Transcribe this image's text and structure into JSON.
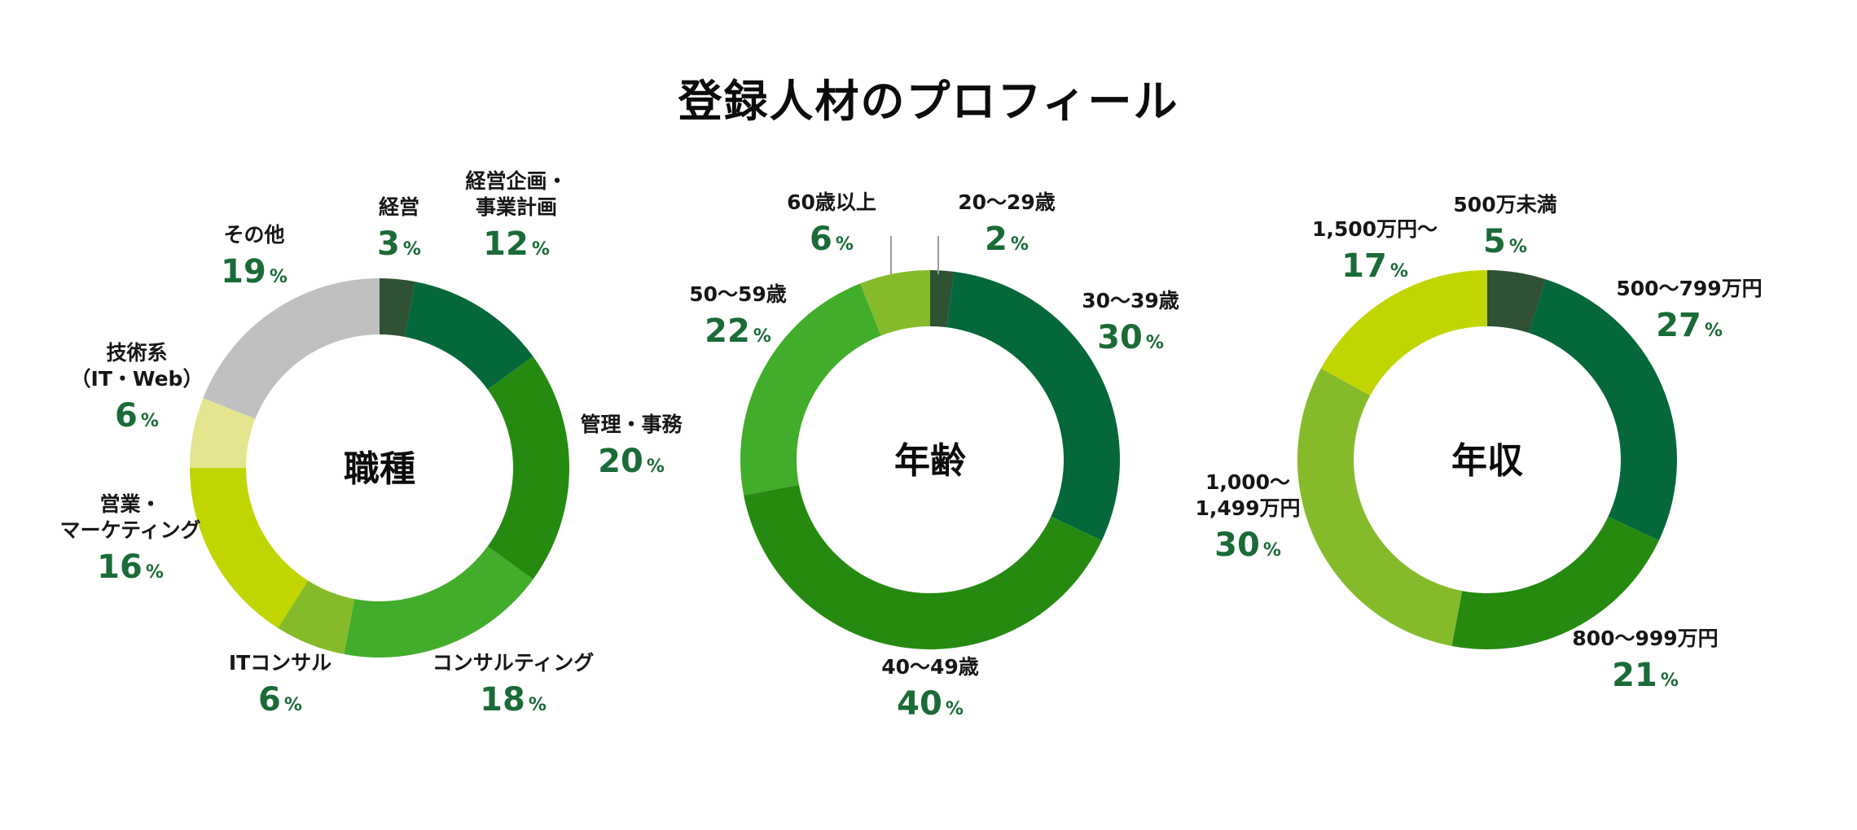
{
  "title": "登録人材のプロフィール",
  "percent_symbol": "%",
  "chart_data": [
    {
      "type": "pie",
      "center_label": "職種",
      "slices": [
        {
          "label": [
            "経営"
          ],
          "value": 3,
          "color": "#2f5134"
        },
        {
          "label": [
            "経営企画・",
            "事業計画"
          ],
          "value": 12,
          "color": "#05683a"
        },
        {
          "label": [
            "管理・事務"
          ],
          "value": 20,
          "color": "#268a11"
        },
        {
          "label": [
            "コンサルティング"
          ],
          "value": 18,
          "color": "#42ad2a"
        },
        {
          "label": [
            "ITコンサル"
          ],
          "value": 6,
          "color": "#85bb2a"
        },
        {
          "label": [
            "営業・",
            "マーケティング"
          ],
          "value": 16,
          "color": "#c1d600"
        },
        {
          "label": [
            "技術系",
            "（IT・Web）"
          ],
          "value": 6,
          "color": "#e5e590"
        },
        {
          "label": [
            "その他"
          ],
          "value": 19,
          "color": "#bfc0bf"
        }
      ]
    },
    {
      "type": "pie",
      "center_label": "年齢",
      "slices": [
        {
          "label": [
            "20～29歳"
          ],
          "value": 2,
          "color": "#2f5134"
        },
        {
          "label": [
            "30～39歳"
          ],
          "value": 30,
          "color": "#05683a"
        },
        {
          "label": [
            "40～49歳"
          ],
          "value": 40,
          "color": "#268a11"
        },
        {
          "label": [
            "50～59歳"
          ],
          "value": 22,
          "color": "#42ad2a"
        },
        {
          "label": [
            "60歳以上"
          ],
          "value": 6,
          "color": "#85bb2a"
        }
      ]
    },
    {
      "type": "pie",
      "center_label": "年収",
      "slices": [
        {
          "label": [
            "500万未満"
          ],
          "value": 5,
          "color": "#2f5134"
        },
        {
          "label": [
            "500～799万円"
          ],
          "value": 27,
          "color": "#05683a"
        },
        {
          "label": [
            "800～999万円"
          ],
          "value": 21,
          "color": "#268a11"
        },
        {
          "label": [
            "1,000～",
            "1,499万円"
          ],
          "value": 30,
          "color": "#85bb2a"
        },
        {
          "label": [
            "1,500万円～"
          ],
          "value": 17,
          "color": "#c1d600"
        }
      ]
    }
  ]
}
